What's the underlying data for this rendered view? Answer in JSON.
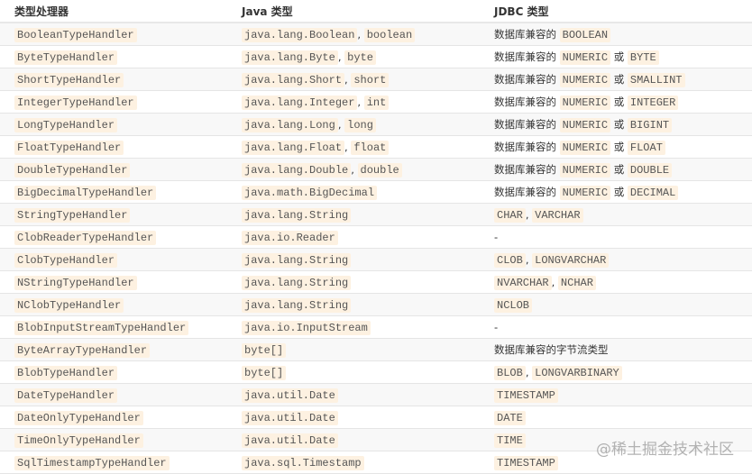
{
  "headers": [
    "类型处理器",
    "Java 类型",
    "JDBC 类型"
  ],
  "rows": [
    [
      [
        [
          "c",
          "BooleanTypeHandler"
        ]
      ],
      [
        [
          "c",
          "java.lang.Boolean"
        ],
        [
          "t",
          ", "
        ],
        [
          "c",
          "boolean"
        ]
      ],
      [
        [
          "t",
          "数据库兼容的 "
        ],
        [
          "c",
          "BOOLEAN"
        ]
      ]
    ],
    [
      [
        [
          "c",
          "ByteTypeHandler"
        ]
      ],
      [
        [
          "c",
          "java.lang.Byte"
        ],
        [
          "t",
          ", "
        ],
        [
          "c",
          "byte"
        ]
      ],
      [
        [
          "t",
          "数据库兼容的 "
        ],
        [
          "c",
          "NUMERIC"
        ],
        [
          "t",
          " 或 "
        ],
        [
          "c",
          "BYTE"
        ]
      ]
    ],
    [
      [
        [
          "c",
          "ShortTypeHandler"
        ]
      ],
      [
        [
          "c",
          "java.lang.Short"
        ],
        [
          "t",
          ", "
        ],
        [
          "c",
          "short"
        ]
      ],
      [
        [
          "t",
          "数据库兼容的 "
        ],
        [
          "c",
          "NUMERIC"
        ],
        [
          "t",
          " 或 "
        ],
        [
          "c",
          "SMALLINT"
        ]
      ]
    ],
    [
      [
        [
          "c",
          "IntegerTypeHandler"
        ]
      ],
      [
        [
          "c",
          "java.lang.Integer"
        ],
        [
          "t",
          ", "
        ],
        [
          "c",
          "int"
        ]
      ],
      [
        [
          "t",
          "数据库兼容的 "
        ],
        [
          "c",
          "NUMERIC"
        ],
        [
          "t",
          " 或 "
        ],
        [
          "c",
          "INTEGER"
        ]
      ]
    ],
    [
      [
        [
          "c",
          "LongTypeHandler"
        ]
      ],
      [
        [
          "c",
          "java.lang.Long"
        ],
        [
          "t",
          ", "
        ],
        [
          "c",
          "long"
        ]
      ],
      [
        [
          "t",
          "数据库兼容的 "
        ],
        [
          "c",
          "NUMERIC"
        ],
        [
          "t",
          " 或 "
        ],
        [
          "c",
          "BIGINT"
        ]
      ]
    ],
    [
      [
        [
          "c",
          "FloatTypeHandler"
        ]
      ],
      [
        [
          "c",
          "java.lang.Float"
        ],
        [
          "t",
          ", "
        ],
        [
          "c",
          "float"
        ]
      ],
      [
        [
          "t",
          "数据库兼容的 "
        ],
        [
          "c",
          "NUMERIC"
        ],
        [
          "t",
          " 或 "
        ],
        [
          "c",
          "FLOAT"
        ]
      ]
    ],
    [
      [
        [
          "c",
          "DoubleTypeHandler"
        ]
      ],
      [
        [
          "c",
          "java.lang.Double"
        ],
        [
          "t",
          ", "
        ],
        [
          "c",
          "double"
        ]
      ],
      [
        [
          "t",
          "数据库兼容的 "
        ],
        [
          "c",
          "NUMERIC"
        ],
        [
          "t",
          " 或 "
        ],
        [
          "c",
          "DOUBLE"
        ]
      ]
    ],
    [
      [
        [
          "c",
          "BigDecimalTypeHandler"
        ]
      ],
      [
        [
          "c",
          "java.math.BigDecimal"
        ]
      ],
      [
        [
          "t",
          "数据库兼容的 "
        ],
        [
          "c",
          "NUMERIC"
        ],
        [
          "t",
          " 或 "
        ],
        [
          "c",
          "DECIMAL"
        ]
      ]
    ],
    [
      [
        [
          "c",
          "StringTypeHandler"
        ]
      ],
      [
        [
          "c",
          "java.lang.String"
        ]
      ],
      [
        [
          "c",
          "CHAR"
        ],
        [
          "t",
          ", "
        ],
        [
          "c",
          "VARCHAR"
        ]
      ]
    ],
    [
      [
        [
          "c",
          "ClobReaderTypeHandler"
        ]
      ],
      [
        [
          "c",
          "java.io.Reader"
        ]
      ],
      [
        [
          "t",
          "-"
        ]
      ]
    ],
    [
      [
        [
          "c",
          "ClobTypeHandler"
        ]
      ],
      [
        [
          "c",
          "java.lang.String"
        ]
      ],
      [
        [
          "c",
          "CLOB"
        ],
        [
          "t",
          ", "
        ],
        [
          "c",
          "LONGVARCHAR"
        ]
      ]
    ],
    [
      [
        [
          "c",
          "NStringTypeHandler"
        ]
      ],
      [
        [
          "c",
          "java.lang.String"
        ]
      ],
      [
        [
          "c",
          "NVARCHAR"
        ],
        [
          "t",
          ", "
        ],
        [
          "c",
          "NCHAR"
        ]
      ]
    ],
    [
      [
        [
          "c",
          "NClobTypeHandler"
        ]
      ],
      [
        [
          "c",
          "java.lang.String"
        ]
      ],
      [
        [
          "c",
          "NCLOB"
        ]
      ]
    ],
    [
      [
        [
          "c",
          "BlobInputStreamTypeHandler"
        ]
      ],
      [
        [
          "c",
          "java.io.InputStream"
        ]
      ],
      [
        [
          "t",
          "-"
        ]
      ]
    ],
    [
      [
        [
          "c",
          "ByteArrayTypeHandler"
        ]
      ],
      [
        [
          "c",
          "byte[]"
        ]
      ],
      [
        [
          "t",
          "数据库兼容的字节流类型"
        ]
      ]
    ],
    [
      [
        [
          "c",
          "BlobTypeHandler"
        ]
      ],
      [
        [
          "c",
          "byte[]"
        ]
      ],
      [
        [
          "c",
          "BLOB"
        ],
        [
          "t",
          ", "
        ],
        [
          "c",
          "LONGVARBINARY"
        ]
      ]
    ],
    [
      [
        [
          "c",
          "DateTypeHandler"
        ]
      ],
      [
        [
          "c",
          "java.util.Date"
        ]
      ],
      [
        [
          "c",
          "TIMESTAMP"
        ]
      ]
    ],
    [
      [
        [
          "c",
          "DateOnlyTypeHandler"
        ]
      ],
      [
        [
          "c",
          "java.util.Date"
        ]
      ],
      [
        [
          "c",
          "DATE"
        ]
      ]
    ],
    [
      [
        [
          "c",
          "TimeOnlyTypeHandler"
        ]
      ],
      [
        [
          "c",
          "java.util.Date"
        ]
      ],
      [
        [
          "c",
          "TIME"
        ]
      ]
    ],
    [
      [
        [
          "c",
          "SqlTimestampTypeHandler"
        ]
      ],
      [
        [
          "c",
          "java.sql.Timestamp"
        ]
      ],
      [
        [
          "c",
          "TIMESTAMP"
        ]
      ]
    ]
  ],
  "watermark": "@稀土掘金技术社区"
}
